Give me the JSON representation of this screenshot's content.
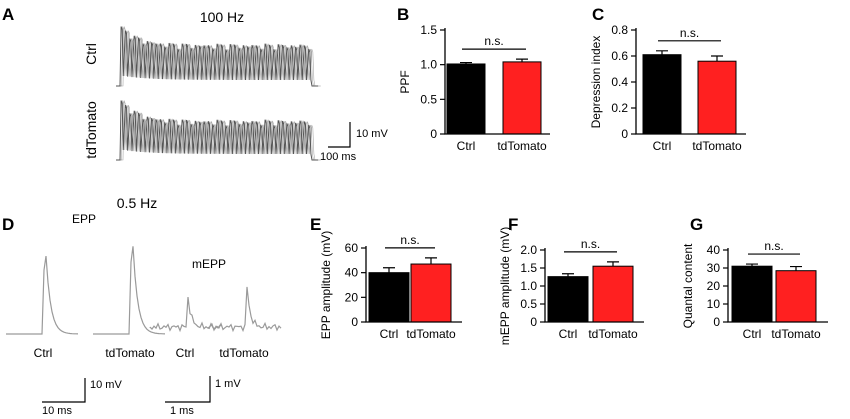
{
  "figure": {
    "panel_letters": [
      "A",
      "B",
      "C",
      "D",
      "E",
      "F",
      "G"
    ],
    "title_100hz": "100 Hz",
    "title_05hz": "0.5 Hz",
    "trace_label_ctrl": "Ctrl",
    "trace_label_td": "tdTomato",
    "scale_a_v": "10 mV",
    "scale_a_t": "100 ms",
    "label_epp": "EPP",
    "label_mepp": "mEPP",
    "d_label_ctrl1": "Ctrl",
    "d_label_td1": "tdTomato",
    "d_label_ctrl2": "Ctrl",
    "d_label_td2": "tdTomato",
    "scale_epp_v": "10 mV",
    "scale_epp_t": "10 ms",
    "scale_mepp_v": "1 mV",
    "scale_mepp_t": "1 ms"
  },
  "colors": {
    "ctrl": "#000000",
    "td": "#ff2020",
    "trace_a": "#555555",
    "trace_d": "#9a9a9a"
  },
  "chart_data": [
    {
      "panel": "B",
      "type": "bar",
      "categories": [
        "Ctrl",
        "tdTomato"
      ],
      "values": [
        1.01,
        1.04
      ],
      "errors": [
        0.02,
        0.04
      ],
      "ylabel": "PPF",
      "ylim": [
        0,
        1.5
      ],
      "yticks": [
        0,
        0.5,
        1.0,
        1.5
      ],
      "ytick_labels": [
        "0",
        "0.5",
        "1.0",
        "1.5"
      ],
      "annotation": "n.s."
    },
    {
      "panel": "C",
      "type": "bar",
      "categories": [
        "Ctrl",
        "tdTomato"
      ],
      "values": [
        0.61,
        0.56
      ],
      "errors": [
        0.03,
        0.04
      ],
      "ylabel": "Depression index",
      "ylim": [
        0,
        0.8
      ],
      "yticks": [
        0,
        0.2,
        0.4,
        0.6,
        0.8
      ],
      "ytick_labels": [
        "0",
        "0.2",
        "0.4",
        "0.6",
        "0.8"
      ],
      "annotation": "n.s."
    },
    {
      "panel": "E",
      "type": "bar",
      "categories": [
        "Ctrl",
        "tdTomato"
      ],
      "values": [
        40,
        47
      ],
      "errors": [
        4,
        5
      ],
      "ylabel": "EPP amplitude (mV)",
      "ylim": [
        0,
        60
      ],
      "yticks": [
        0,
        20,
        40,
        60
      ],
      "ytick_labels": [
        "0",
        "20",
        "40",
        "60"
      ],
      "annotation": "n.s."
    },
    {
      "panel": "F",
      "type": "bar",
      "categories": [
        "Ctrl",
        "tdTomato"
      ],
      "values": [
        1.26,
        1.55
      ],
      "errors": [
        0.08,
        0.12
      ],
      "ylabel": "mEPP amplitude (mV)",
      "ylim": [
        0,
        2.0
      ],
      "yticks": [
        0,
        0.5,
        1.0,
        1.5,
        2.0
      ],
      "ytick_labels": [
        "0",
        "0.5",
        "1.0",
        "1.5",
        "2.0"
      ],
      "annotation": "n.s."
    },
    {
      "panel": "G",
      "type": "bar",
      "categories": [
        "Ctrl",
        "tdTomato"
      ],
      "values": [
        31,
        28.5
      ],
      "errors": [
        1.2,
        2.3
      ],
      "ylabel": "Quantal content",
      "ylim": [
        0,
        40
      ],
      "yticks": [
        0,
        10,
        20,
        30,
        40
      ],
      "ytick_labels": [
        "0",
        "10",
        "20",
        "30",
        "40"
      ],
      "annotation": "n.s."
    }
  ]
}
